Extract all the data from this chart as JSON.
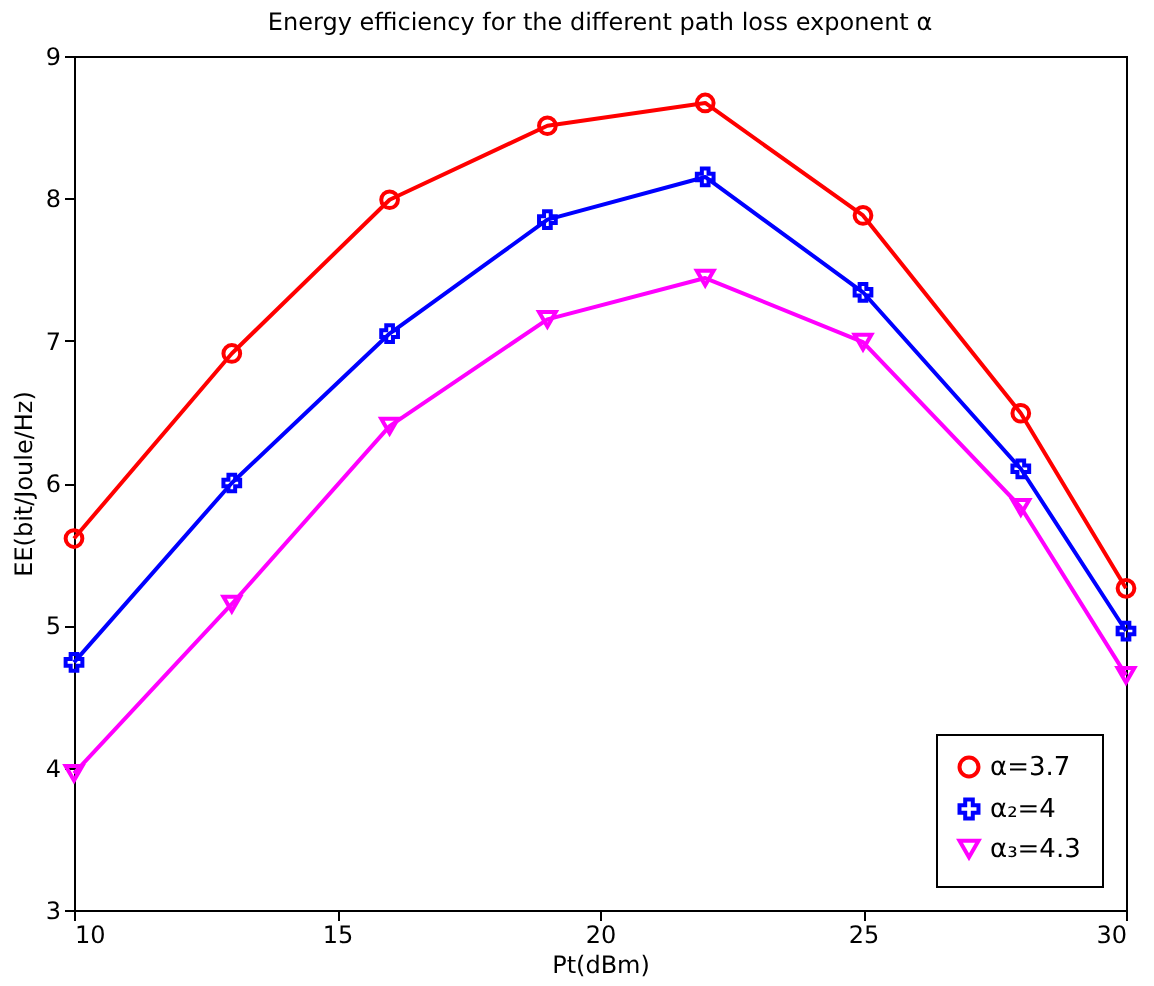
{
  "chart_data": {
    "type": "line",
    "title": "Energy efficiency for the different path loss exponent α",
    "xlabel": "Pt(dBm)",
    "ylabel": "EE(bit/Joule/Hz)",
    "x": [
      10,
      13,
      16,
      19,
      22,
      25,
      28,
      30
    ],
    "series": [
      {
        "name": "α=3.7",
        "color": "#ff0000",
        "marker": "circle",
        "values": [
          5.61,
          6.91,
          7.99,
          8.51,
          8.67,
          7.88,
          6.49,
          5.26
        ]
      },
      {
        "name": "α₂=4",
        "color": "#0000ff",
        "marker": "cross",
        "values": [
          4.74,
          6.0,
          7.05,
          7.85,
          8.15,
          7.34,
          6.1,
          4.96
        ]
      },
      {
        "name": "α₃=4.3",
        "color": "#ff00ff",
        "marker": "triangle",
        "values": [
          3.96,
          5.15,
          6.4,
          7.15,
          7.44,
          6.99,
          5.83,
          4.65
        ]
      }
    ],
    "xlim": [
      10,
      30
    ],
    "xticks": [
      10,
      15,
      20,
      25,
      30
    ],
    "ylim": [
      3,
      9
    ],
    "yticks": [
      3,
      4,
      5,
      6,
      7,
      8,
      9
    ],
    "grid": false,
    "legend": "bottom right",
    "line_style": "solid"
  }
}
